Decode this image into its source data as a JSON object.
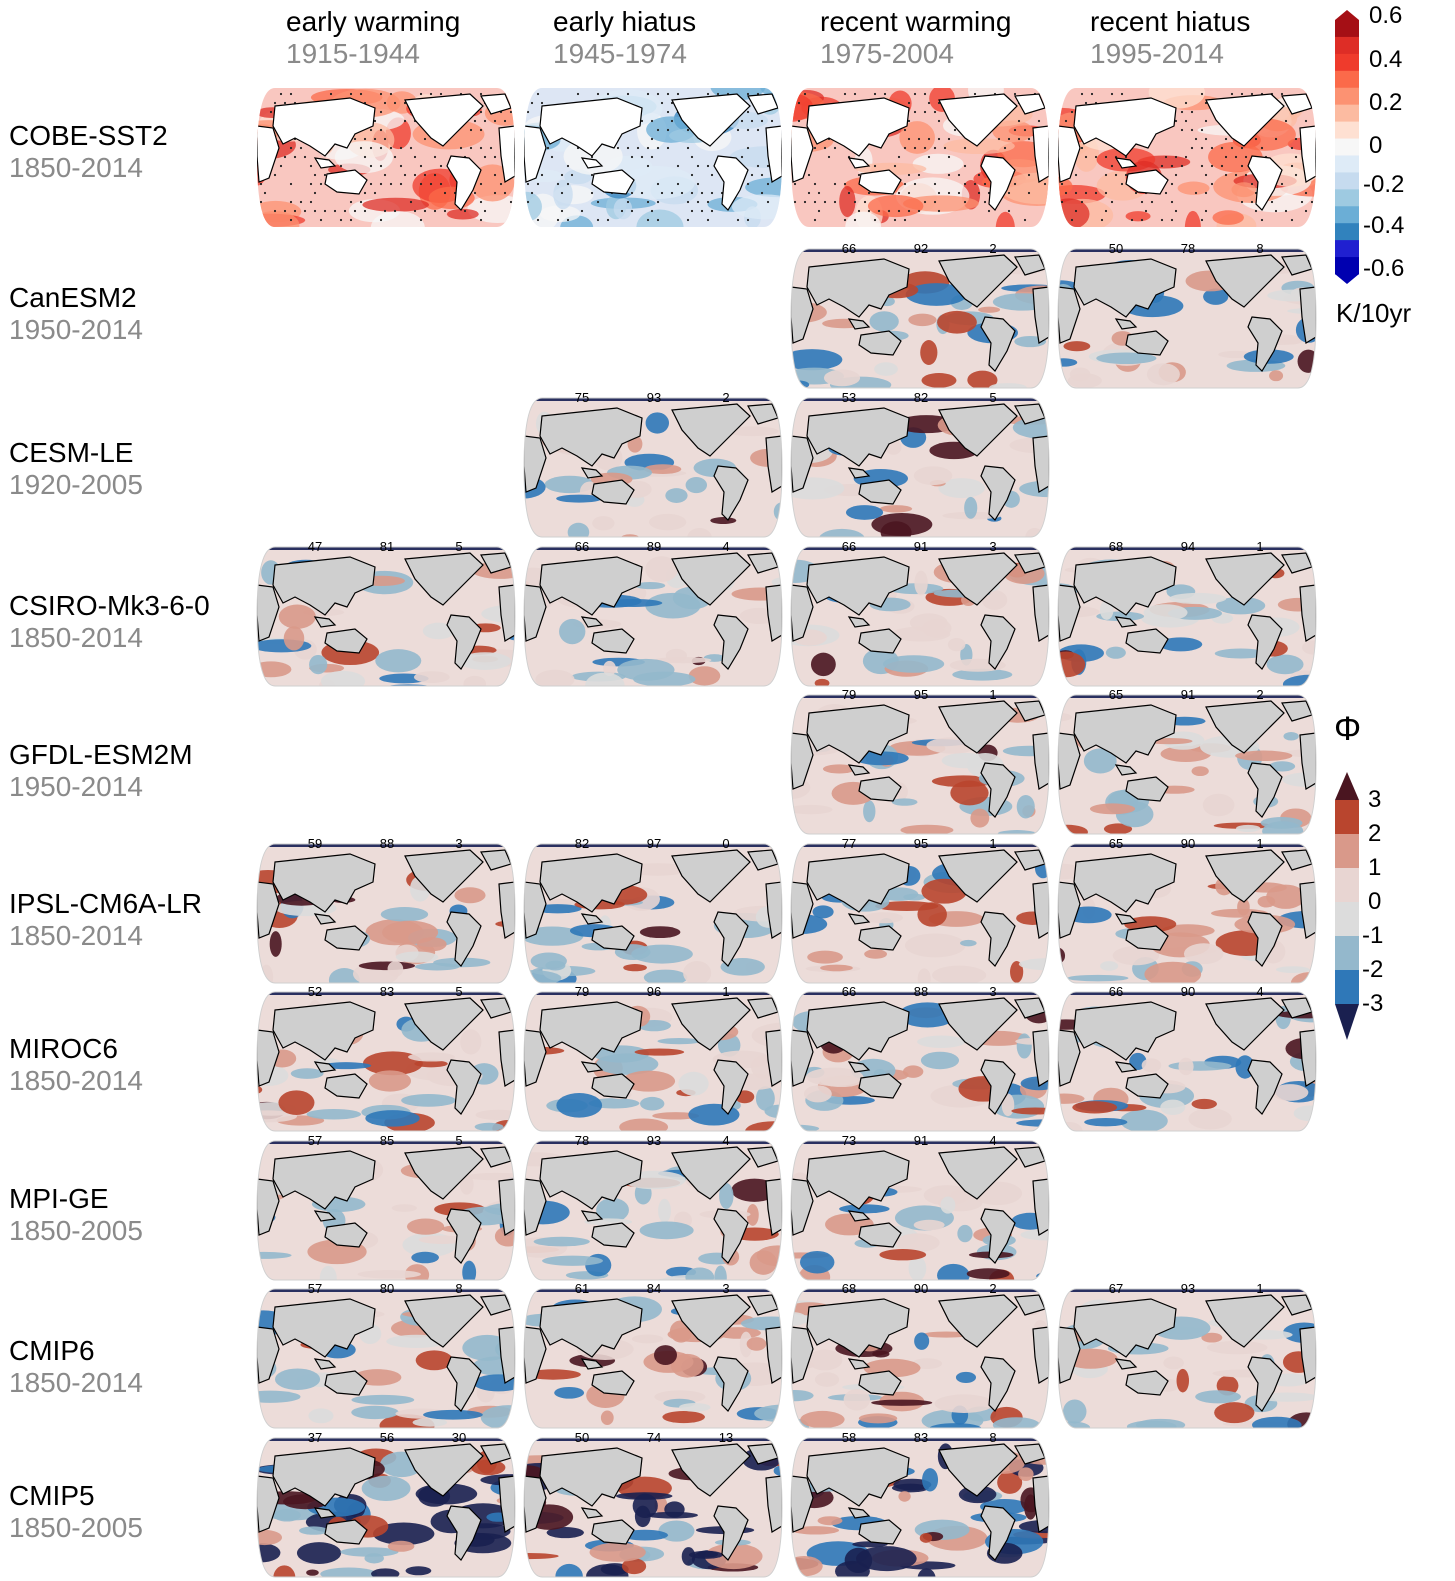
{
  "columns": [
    {
      "name": "early warming",
      "years": "1915-1944"
    },
    {
      "name": "early hiatus",
      "years": "1945-1974"
    },
    {
      "name": "recent warming",
      "years": "1975-2004"
    },
    {
      "name": "recent hiatus",
      "years": "1995-2014"
    }
  ],
  "rows": [
    {
      "name": "COBE-SST2",
      "years": "1850-2014",
      "panels": [
        "obs",
        "obs",
        "obs",
        "obs"
      ],
      "pct": [
        null,
        null,
        null,
        null
      ]
    },
    {
      "name": "CanESM2",
      "years": "1950-2014",
      "panels": [
        null,
        null,
        "model",
        "model"
      ],
      "pct": [
        null,
        null,
        [
          "66",
          "92",
          "2"
        ],
        [
          "50",
          "78",
          "8"
        ]
      ]
    },
    {
      "name": "CESM-LE",
      "years": "1920-2005",
      "panels": [
        null,
        "model",
        "model",
        null
      ],
      "pct": [
        null,
        [
          "75",
          "93",
          "2"
        ],
        [
          "53",
          "82",
          "5"
        ],
        null
      ]
    },
    {
      "name": "CSIRO-Mk3-6-0",
      "years": "1850-2014",
      "panels": [
        "model",
        "model",
        "model",
        "model"
      ],
      "pct": [
        [
          "47",
          "81",
          "5"
        ],
        [
          "66",
          "89",
          "4"
        ],
        [
          "66",
          "91",
          "3"
        ],
        [
          "68",
          "94",
          "1"
        ]
      ]
    },
    {
      "name": "GFDL-ESM2M",
      "years": "1950-2014",
      "panels": [
        null,
        null,
        "model",
        "model"
      ],
      "pct": [
        null,
        null,
        [
          "79",
          "95",
          "1"
        ],
        [
          "65",
          "91",
          "2"
        ]
      ]
    },
    {
      "name": "IPSL-CM6A-LR",
      "years": "1850-2014",
      "panels": [
        "model",
        "model",
        "model",
        "model"
      ],
      "pct": [
        [
          "59",
          "88",
          "3"
        ],
        [
          "82",
          "97",
          "0"
        ],
        [
          "77",
          "95",
          "1"
        ],
        [
          "65",
          "90",
          "1"
        ]
      ]
    },
    {
      "name": "MIROC6",
      "years": "1850-2014",
      "panels": [
        "model",
        "model",
        "model",
        "model"
      ],
      "pct": [
        [
          "52",
          "83",
          "5"
        ],
        [
          "79",
          "96",
          "1"
        ],
        [
          "66",
          "88",
          "3"
        ],
        [
          "66",
          "90",
          "4"
        ]
      ]
    },
    {
      "name": "MPI-GE",
      "years": "1850-2005",
      "panels": [
        "model",
        "model",
        "model",
        null
      ],
      "pct": [
        [
          "57",
          "85",
          "5"
        ],
        [
          "78",
          "93",
          "4"
        ],
        [
          "73",
          "91",
          "4"
        ],
        null
      ]
    },
    {
      "name": "CMIP6",
      "years": "1850-2014",
      "panels": [
        "model",
        "model",
        "model",
        "model"
      ],
      "pct": [
        [
          "57",
          "80",
          "8"
        ],
        [
          "61",
          "84",
          "3"
        ],
        [
          "68",
          "90",
          "2"
        ],
        [
          "67",
          "93",
          "1"
        ]
      ]
    },
    {
      "name": "CMIP5",
      "years": "1850-2005",
      "panels": [
        "model",
        "model",
        "model",
        null
      ],
      "pct": [
        [
          "37",
          "56",
          "30"
        ],
        [
          "50",
          "74",
          "13"
        ],
        [
          "58",
          "83",
          "8"
        ],
        null
      ]
    }
  ],
  "sst_colorbar": {
    "ticks": [
      "0.6",
      "0.4",
      "0.2",
      "0",
      "-0.2",
      "-0.4",
      "-0.6"
    ],
    "unit": "K/10yr",
    "colors": [
      "#a50f15",
      "#de2d26",
      "#ef3b2c",
      "#fb6a4a",
      "#fc9272",
      "#fcbba1",
      "#fee0d2",
      "#f7f7f7",
      "#deebf7",
      "#c6dbef",
      "#9ecae1",
      "#6baed6",
      "#3182bd",
      "#2020d0",
      "#0000b0"
    ]
  },
  "phi_colorbar": {
    "symbol": "Φ",
    "ticks": [
      "3",
      "2",
      "1",
      "0",
      "-1",
      "-2",
      "-3"
    ],
    "colors": [
      "#4a1520",
      "#b9452e",
      "#d9998a",
      "#e8d5d2",
      "#dcdcdc",
      "#94b8cc",
      "#2f78b8",
      "#1a2050"
    ]
  }
}
